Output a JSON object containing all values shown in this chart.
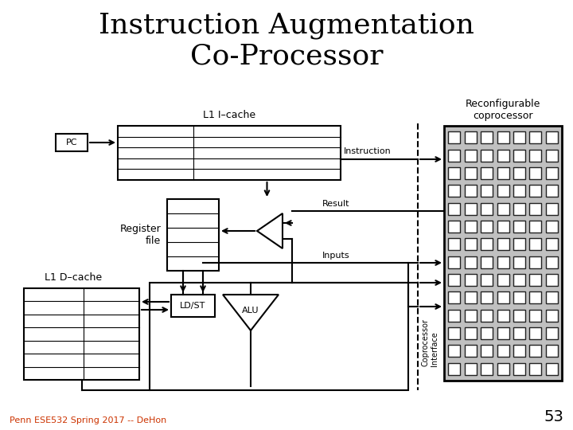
{
  "title_line1": "Instruction Augmentation",
  "title_line2": "Co-Processor",
  "title_fontsize": 26,
  "footer_text": "Penn ESE532 Spring 2017 -- DeHon",
  "slide_number": "53",
  "bg_color": "#ffffff",
  "fg_color": "#000000",
  "rc_gray": "#c0c0c0",
  "sq_ec": "#222222",
  "sq_fc": "#ffffff",
  "footer_color": "#cc3300"
}
